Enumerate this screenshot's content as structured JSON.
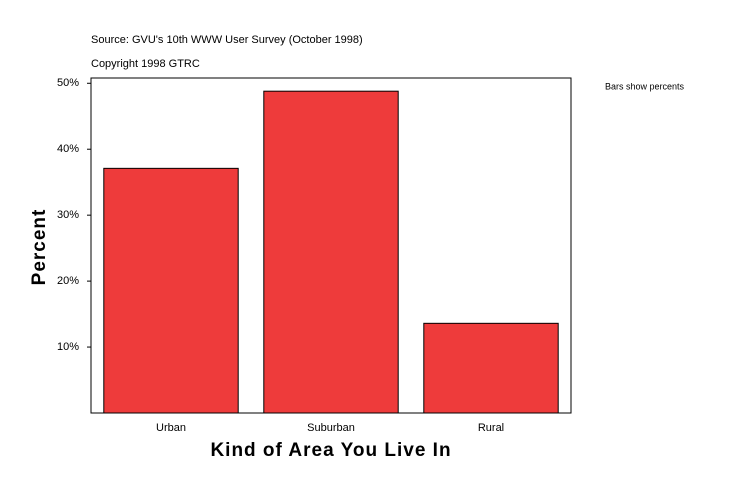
{
  "chart_data": {
    "type": "bar",
    "title": "Source: GVU's 10th WWW User Survey (October 1998)",
    "subtitle": "Copyright 1998 GTRC",
    "annotation": "Bars show percents",
    "x_label": "Kind of Area You Live In",
    "y_label": "Percent",
    "categories": [
      "Urban",
      "Suburban",
      "Rural"
    ],
    "values": [
      37.1,
      48.8,
      13.6
    ],
    "color": "#ee3b3b",
    "ylim": [
      0,
      50.8
    ],
    "yticks": [
      {
        "value": 10,
        "label": "10%"
      },
      {
        "value": 20,
        "label": "20%"
      },
      {
        "value": 30,
        "label": "30%"
      },
      {
        "value": 40,
        "label": "40%"
      },
      {
        "value": 50,
        "label": "50%"
      }
    ],
    "grid": false
  }
}
